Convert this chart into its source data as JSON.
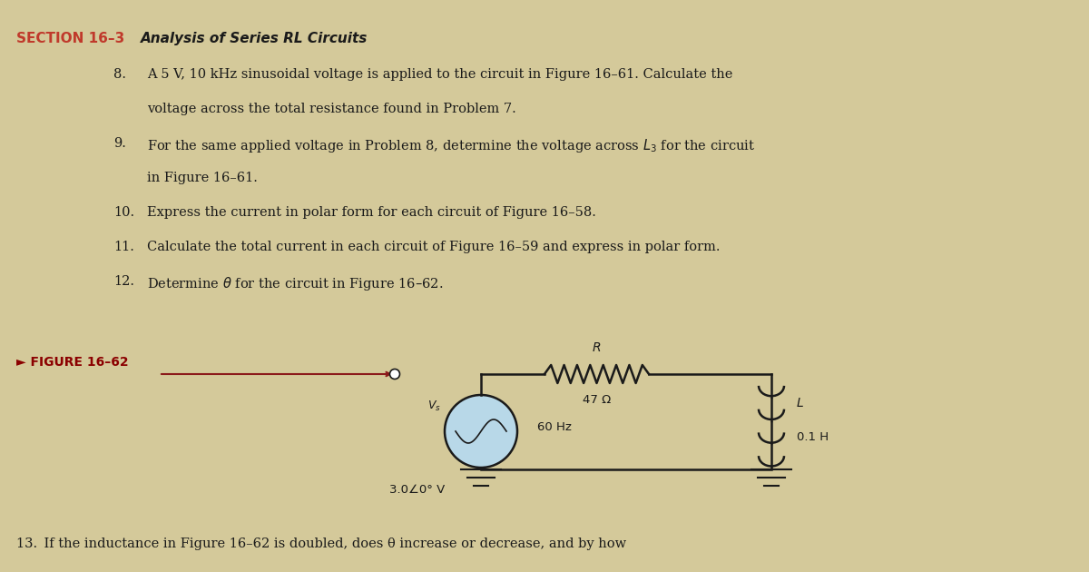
{
  "bg_color": "#d4c99a",
  "title_section": "SECTION 16–3",
  "title_bold": "Analysis of Series RL Circuits",
  "problems": [
    "8. A 5 V, 10 kHz sinusoidal voltage is applied to the circuit in Figure 16–61. Calculate the\n    voltage across the total resistance found in Problem 7.",
    "9. For the same applied voltage in Problem 8, determine the voltage across L₃ for the circuit\n    in Figure 16–61.",
    "10. Express the current in polar form for each circuit of Figure 16–58.",
    "11. Calculate the total current in each circuit of Figure 16–59 and express in polar form.",
    "12. Determine θ for the circuit in Figure 16–62."
  ],
  "figure_label": "► FIGURE 16–62",
  "figure_label_color": "#8b0000",
  "circuit_line_color": "#1a1a1a",
  "arrow_color": "#8b1a1a",
  "vs_label": "Vₛ",
  "vs_value": "3.0∠0° V",
  "vs_freq": "60 Hz",
  "r_label": "R",
  "r_value": "47 Ω",
  "l_label": "L",
  "l_value": "0.1 H",
  "bottom_text": "13. If the inductance in Figure 16–62 is doubled, does θ increase or decrease, and by how",
  "text_color": "#1a1a1a"
}
